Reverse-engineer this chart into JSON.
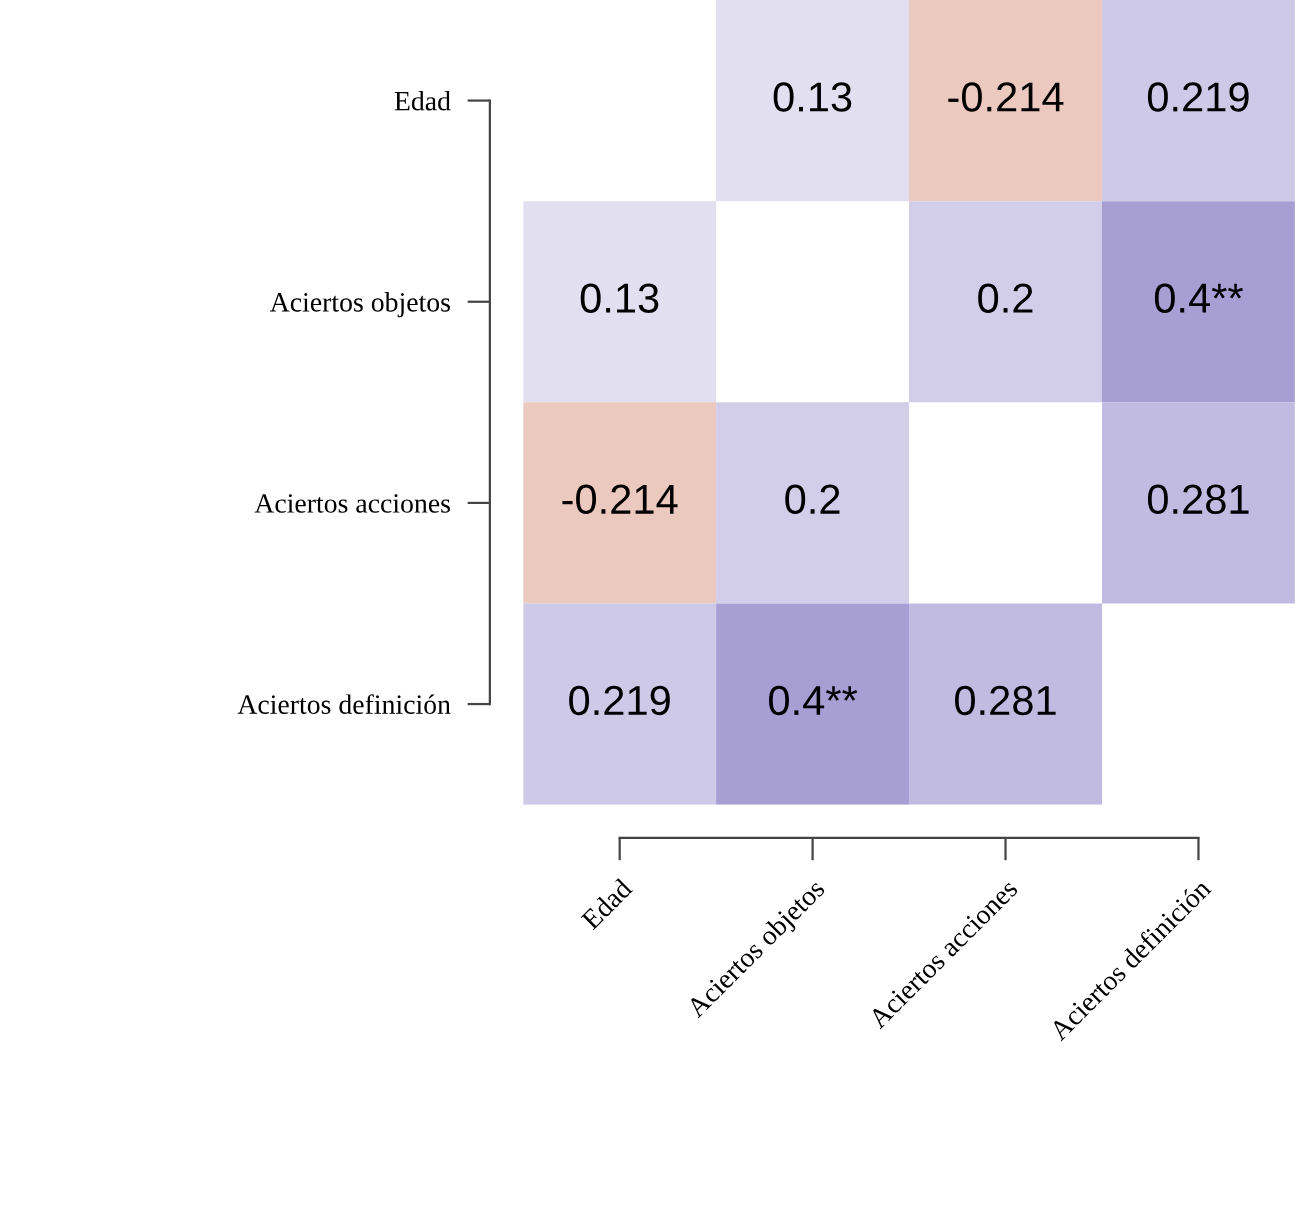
{
  "chart_data": {
    "type": "heatmap",
    "categories": [
      "Edad",
      "Aciertos objetos",
      "Aciertos acciones",
      "Aciertos definición"
    ],
    "y_categories": [
      "Edad",
      "Aciertos objetos",
      "Aciertos acciones",
      "Aciertos definición"
    ],
    "cells": [
      [
        null,
        0.13,
        -0.214,
        0.219
      ],
      [
        0.13,
        null,
        0.2,
        0.4
      ],
      [
        -0.214,
        0.2,
        null,
        0.281
      ],
      [
        0.219,
        0.4,
        0.281,
        null
      ]
    ],
    "cell_labels": [
      [
        null,
        "0.13",
        "-0.214",
        "0.219"
      ],
      [
        "0.13",
        null,
        "0.2",
        "0.4**"
      ],
      [
        "-0.214",
        "0.2",
        null,
        "0.281"
      ],
      [
        "0.219",
        "0.4**",
        "0.281",
        null
      ]
    ]
  }
}
